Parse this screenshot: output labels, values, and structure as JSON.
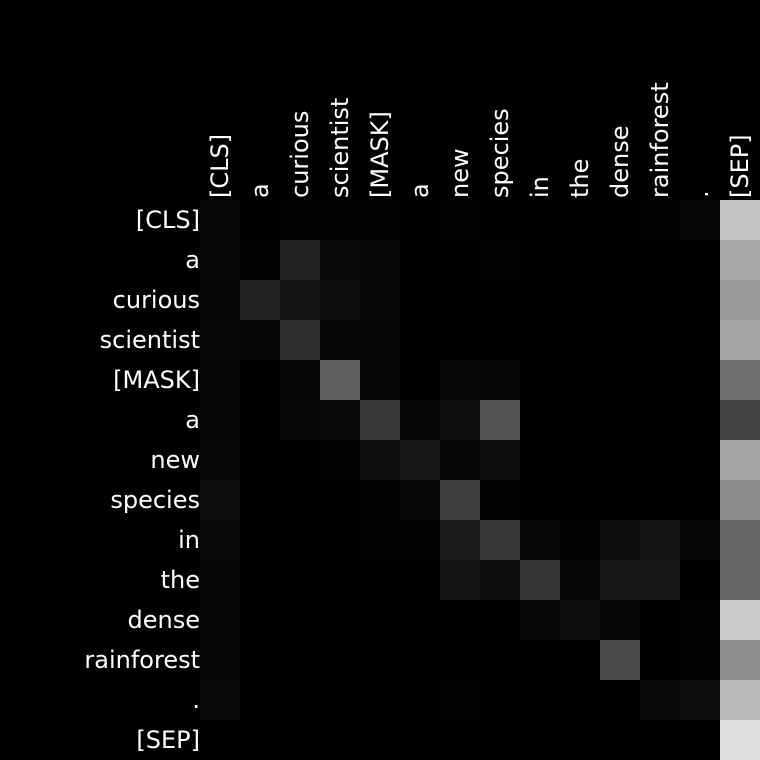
{
  "colors": {
    "background": "#000000",
    "text": "#ffffff",
    "cell_low": "#000000",
    "cell_high": "#ffffff"
  },
  "chart_data": {
    "type": "heatmap",
    "colormap": "grayscale",
    "value_range": [
      0,
      1
    ],
    "x_axis_position": "top",
    "x_tick_rotation_degrees": -90,
    "grid": false,
    "legend": "none",
    "x_tick_labels": [
      "[CLS]",
      "a",
      "curious",
      "scientist",
      "[MASK]",
      "a",
      "new",
      "species",
      "in",
      "the",
      "dense",
      "rainforest",
      ".",
      "[SEP]"
    ],
    "y_tick_labels": [
      "[CLS]",
      "a",
      "curious",
      "scientist",
      "[MASK]",
      "a",
      "new",
      "species",
      "in",
      "the",
      "dense",
      "rainforest",
      ".",
      "[SEP]"
    ],
    "values": [
      [
        0.03,
        0.0,
        0.01,
        0.01,
        0.01,
        0.0,
        0.01,
        0.0,
        0.0,
        0.0,
        0.0,
        0.01,
        0.02,
        0.77
      ],
      [
        0.03,
        0.01,
        0.13,
        0.04,
        0.03,
        0.0,
        0.0,
        0.01,
        0.0,
        0.0,
        0.0,
        0.0,
        0.0,
        0.66
      ],
      [
        0.02,
        0.13,
        0.07,
        0.05,
        0.03,
        0.0,
        0.0,
        0.0,
        0.0,
        0.0,
        0.0,
        0.0,
        0.0,
        0.6
      ],
      [
        0.03,
        0.02,
        0.18,
        0.02,
        0.02,
        0.0,
        0.0,
        0.0,
        0.0,
        0.0,
        0.0,
        0.0,
        0.0,
        0.64
      ],
      [
        0.02,
        0.0,
        0.02,
        0.37,
        0.02,
        0.0,
        0.03,
        0.02,
        0.0,
        0.0,
        0.0,
        0.0,
        0.0,
        0.44
      ],
      [
        0.02,
        0.0,
        0.03,
        0.04,
        0.22,
        0.02,
        0.06,
        0.32,
        0.0,
        0.0,
        0.0,
        0.0,
        0.0,
        0.26
      ],
      [
        0.03,
        0.0,
        0.0,
        0.01,
        0.06,
        0.09,
        0.02,
        0.05,
        0.0,
        0.0,
        0.0,
        0.0,
        0.0,
        0.64
      ],
      [
        0.05,
        0.0,
        0.0,
        0.0,
        0.01,
        0.03,
        0.24,
        0.01,
        0.0,
        0.0,
        0.0,
        0.0,
        0.0,
        0.55
      ],
      [
        0.04,
        0.0,
        0.0,
        0.0,
        0.01,
        0.01,
        0.1,
        0.21,
        0.03,
        0.01,
        0.05,
        0.08,
        0.02,
        0.4
      ],
      [
        0.02,
        0.0,
        0.0,
        0.0,
        0.0,
        0.0,
        0.07,
        0.05,
        0.2,
        0.02,
        0.09,
        0.09,
        0.0,
        0.4
      ],
      [
        0.02,
        0.0,
        0.0,
        0.0,
        0.0,
        0.0,
        0.0,
        0.0,
        0.03,
        0.05,
        0.02,
        0.0,
        0.01,
        0.8
      ],
      [
        0.02,
        0.0,
        0.0,
        0.0,
        0.0,
        0.0,
        0.0,
        0.0,
        0.0,
        0.0,
        0.29,
        0.0,
        0.01,
        0.56
      ],
      [
        0.04,
        0.0,
        0.0,
        0.0,
        0.0,
        0.0,
        0.01,
        0.0,
        0.0,
        0.0,
        0.0,
        0.04,
        0.05,
        0.73
      ],
      [
        0.0,
        0.0,
        0.0,
        0.0,
        0.0,
        0.0,
        0.0,
        0.0,
        0.0,
        0.0,
        0.0,
        0.0,
        0.0,
        0.87
      ]
    ]
  }
}
